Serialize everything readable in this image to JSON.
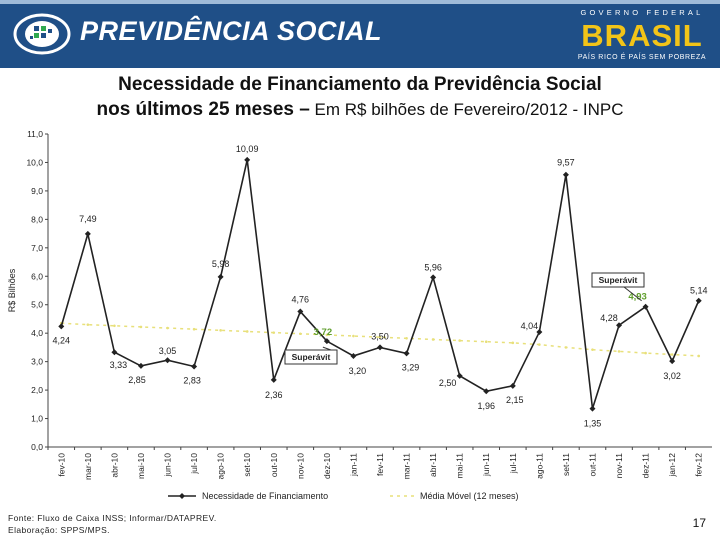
{
  "header": {
    "brand": "PREVIDÊNCIA SOCIAL",
    "gov_top": "GOVERNO FEDERAL",
    "gov_main": "BRASIL",
    "gov_sub": "PAÍS RICO É PAÍS SEM POBREZA",
    "colors": {
      "header_bg": "#1f4f87",
      "gov_yellow": "#f2c418",
      "gov_green": "#2fa84f"
    }
  },
  "title": {
    "line1": "Necessidade de Financiamento da Previdência Social",
    "line2_bold": "nos últimos 25 meses –",
    "line2_normal": " Em R$ bilhões de Fevereiro/2012 - INPC"
  },
  "footer": {
    "source": "Fonte: Fluxo de Caixa INSS; Informar/DATAPREV.",
    "elaboration": "Elaboração: SPPS/MPS.",
    "page": "17"
  },
  "chart_data": {
    "type": "line",
    "ylabel": "R$ Bilhões",
    "ylim": [
      0,
      11
    ],
    "yticks": [
      "0,0",
      "1,0",
      "2,0",
      "3,0",
      "4,0",
      "5,0",
      "6,0",
      "7,0",
      "8,0",
      "9,0",
      "10,0",
      "11,0"
    ],
    "categories": [
      "fev-10",
      "mar-10",
      "abr-10",
      "mai-10",
      "jun-10",
      "jul-10",
      "ago-10",
      "set-10",
      "out-10",
      "nov-10",
      "dez-10",
      "jan-11",
      "fev-11",
      "mar-11",
      "abr-11",
      "mai-11",
      "jun-11",
      "jul-11",
      "ago-11",
      "set-11",
      "out-11",
      "nov-11",
      "dez-11",
      "jan-12",
      "fev-12"
    ],
    "series": [
      {
        "name": "Necessidade de Financiamento",
        "color": "#222222",
        "values": [
          4.24,
          7.49,
          3.33,
          2.85,
          3.05,
          2.83,
          5.98,
          10.09,
          2.36,
          4.76,
          3.72,
          3.2,
          3.5,
          3.29,
          5.96,
          2.5,
          1.96,
          2.15,
          4.04,
          9.57,
          1.35,
          4.28,
          4.93,
          3.02,
          5.14
        ],
        "labels": [
          "4,24",
          "7,49",
          "3,33",
          "2,85",
          "3,05",
          "2,83",
          "5,98",
          "10,09",
          "2,36",
          "4,76",
          "3,72",
          "3,20",
          "3,50",
          "3,29",
          "5,96",
          "2,50",
          "1,96",
          "2,15",
          "4,04",
          "9,57",
          "1,35",
          "4,28",
          "4,93",
          "3,02",
          "5,14"
        ],
        "highlight_color": "#5f9e2c"
      },
      {
        "name": "Média Móvel (12 meses)",
        "color": "#e8e07a",
        "values": [
          4.35,
          4.3,
          4.26,
          4.22,
          4.18,
          4.14,
          4.1,
          4.06,
          4.02,
          3.98,
          3.94,
          3.9,
          3.86,
          3.82,
          3.78,
          3.74,
          3.7,
          3.66,
          3.6,
          3.5,
          3.42,
          3.36,
          3.3,
          3.25,
          3.2
        ]
      }
    ],
    "annotations": [
      {
        "text": "Superávit",
        "target_index": 10
      },
      {
        "text": "Superávit",
        "target_index": 22
      }
    ],
    "legend": "bottom"
  }
}
